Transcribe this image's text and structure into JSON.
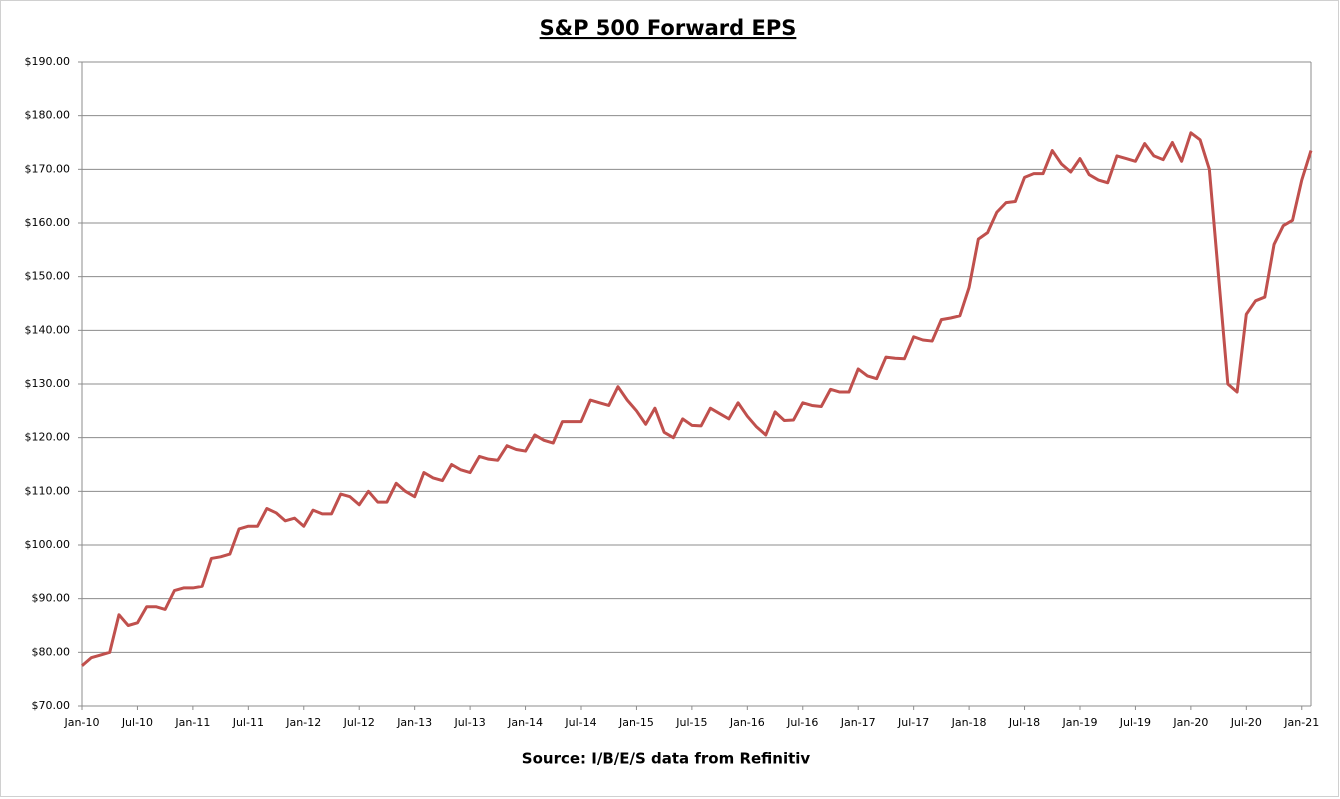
{
  "chart_data": {
    "type": "line",
    "title": "S&P 500 Forward EPS",
    "source": "Source: I/B/E/S data from Refinitiv",
    "x": [
      "2010-01",
      "2010-02",
      "2010-03",
      "2010-04",
      "2010-05",
      "2010-06",
      "2010-07",
      "2010-08",
      "2010-09",
      "2010-10",
      "2010-11",
      "2010-12",
      "2011-01",
      "2011-02",
      "2011-03",
      "2011-04",
      "2011-05",
      "2011-06",
      "2011-07",
      "2011-08",
      "2011-09",
      "2011-10",
      "2011-11",
      "2011-12",
      "2012-01",
      "2012-02",
      "2012-03",
      "2012-04",
      "2012-05",
      "2012-06",
      "2012-07",
      "2012-08",
      "2012-09",
      "2012-10",
      "2012-11",
      "2012-12",
      "2013-01",
      "2013-02",
      "2013-03",
      "2013-04",
      "2013-05",
      "2013-06",
      "2013-07",
      "2013-08",
      "2013-09",
      "2013-10",
      "2013-11",
      "2013-12",
      "2014-01",
      "2014-02",
      "2014-03",
      "2014-04",
      "2014-05",
      "2014-06",
      "2014-07",
      "2014-08",
      "2014-09",
      "2014-10",
      "2014-11",
      "2014-12",
      "2015-01",
      "2015-02",
      "2015-03",
      "2015-04",
      "2015-05",
      "2015-06",
      "2015-07",
      "2015-08",
      "2015-09",
      "2015-10",
      "2015-11",
      "2015-12",
      "2016-01",
      "2016-02",
      "2016-03",
      "2016-04",
      "2016-05",
      "2016-06",
      "2016-07",
      "2016-08",
      "2016-09",
      "2016-10",
      "2016-11",
      "2016-12",
      "2017-01",
      "2017-02",
      "2017-03",
      "2017-04",
      "2017-05",
      "2017-06",
      "2017-07",
      "2017-08",
      "2017-09",
      "2017-10",
      "2017-11",
      "2017-12",
      "2018-01",
      "2018-02",
      "2018-03",
      "2018-04",
      "2018-05",
      "2018-06",
      "2018-07",
      "2018-08",
      "2018-09",
      "2018-10",
      "2018-11",
      "2018-12",
      "2019-01",
      "2019-02",
      "2019-03",
      "2019-04",
      "2019-05",
      "2019-06",
      "2019-07",
      "2019-08",
      "2019-09",
      "2019-10",
      "2019-11",
      "2019-12",
      "2020-01",
      "2020-02",
      "2020-03",
      "2020-04",
      "2020-05",
      "2020-06",
      "2020-07",
      "2020-08",
      "2020-09",
      "2020-10",
      "2020-11",
      "2020-12",
      "2021-01",
      "2021-02"
    ],
    "series": [
      {
        "name": "S&P 500 Forward EPS",
        "color": "#c0504d",
        "values": [
          77.5,
          79,
          79.5,
          80,
          87,
          85,
          85.5,
          88.5,
          88.5,
          88,
          91.5,
          92,
          92,
          92.3,
          97.5,
          97.8,
          98.3,
          103,
          103.5,
          103.5,
          106.8,
          106,
          104.5,
          105,
          103.5,
          106.5,
          105.8,
          105.8,
          109.5,
          109,
          107.5,
          110,
          108,
          108,
          111.5,
          110,
          109,
          113.5,
          112.5,
          112,
          115,
          114,
          113.5,
          116.5,
          116,
          115.8,
          118.5,
          117.8,
          117.5,
          120.5,
          119.5,
          119,
          123,
          123,
          123,
          127,
          126.5,
          126,
          129.5,
          127,
          125,
          122.5,
          125.5,
          121,
          120,
          123.5,
          122.3,
          122.2,
          125.5,
          124.5,
          123.5,
          126.5,
          124,
          122,
          120.5,
          124.8,
          123.2,
          123.3,
          126.5,
          126,
          125.8,
          129,
          128.5,
          128.5,
          132.8,
          131.5,
          131,
          135,
          134.8,
          134.7,
          138.8,
          138.2,
          138,
          142,
          142.3,
          142.7,
          148,
          157,
          158.2,
          162,
          163.8,
          164,
          168.5,
          169.2,
          169.2,
          173.5,
          171,
          169.5,
          172,
          169,
          168,
          167.5,
          172.5,
          172,
          171.5,
          174.8,
          172.5,
          171.8,
          175,
          171.5,
          176.8,
          175.5,
          170,
          150,
          130,
          128.5,
          143,
          145.5,
          146.2,
          156,
          159.5,
          160.5,
          168,
          173.5
        ]
      }
    ],
    "xlim": [
      "2010-01",
      "2021-02"
    ],
    "xticks": [
      {
        "value": "2010-01",
        "label": "Jan-10"
      },
      {
        "value": "2010-07",
        "label": "Jul-10"
      },
      {
        "value": "2011-01",
        "label": "Jan-11"
      },
      {
        "value": "2011-07",
        "label": "Jul-11"
      },
      {
        "value": "2012-01",
        "label": "Jan-12"
      },
      {
        "value": "2012-07",
        "label": "Jul-12"
      },
      {
        "value": "2013-01",
        "label": "Jan-13"
      },
      {
        "value": "2013-07",
        "label": "Jul-13"
      },
      {
        "value": "2014-01",
        "label": "Jan-14"
      },
      {
        "value": "2014-07",
        "label": "Jul-14"
      },
      {
        "value": "2015-01",
        "label": "Jan-15"
      },
      {
        "value": "2015-07",
        "label": "Jul-15"
      },
      {
        "value": "2016-01",
        "label": "Jan-16"
      },
      {
        "value": "2016-07",
        "label": "Jul-16"
      },
      {
        "value": "2017-01",
        "label": "Jan-17"
      },
      {
        "value": "2017-07",
        "label": "Jul-17"
      },
      {
        "value": "2018-01",
        "label": "Jan-18"
      },
      {
        "value": "2018-07",
        "label": "Jul-18"
      },
      {
        "value": "2019-01",
        "label": "Jan-19"
      },
      {
        "value": "2019-07",
        "label": "Jul-19"
      },
      {
        "value": "2020-01",
        "label": "Jan-20"
      },
      {
        "value": "2020-07",
        "label": "Jul-20"
      },
      {
        "value": "2021-01",
        "label": "Jan-21"
      }
    ],
    "ylim": [
      70,
      190
    ],
    "yticks": [
      {
        "value": 70,
        "label": "$70.00"
      },
      {
        "value": 80,
        "label": "$80.00"
      },
      {
        "value": 90,
        "label": "$90.00"
      },
      {
        "value": 100,
        "label": "$100.00"
      },
      {
        "value": 110,
        "label": "$110.00"
      },
      {
        "value": 120,
        "label": "$120.00"
      },
      {
        "value": 130,
        "label": "$130.00"
      },
      {
        "value": 140,
        "label": "$140.00"
      },
      {
        "value": 150,
        "label": "$150.00"
      },
      {
        "value": 160,
        "label": "$160.00"
      },
      {
        "value": 170,
        "label": "$170.00"
      },
      {
        "value": 180,
        "label": "$180.00"
      },
      {
        "value": 190,
        "label": "$190.00"
      }
    ],
    "grid": true
  }
}
